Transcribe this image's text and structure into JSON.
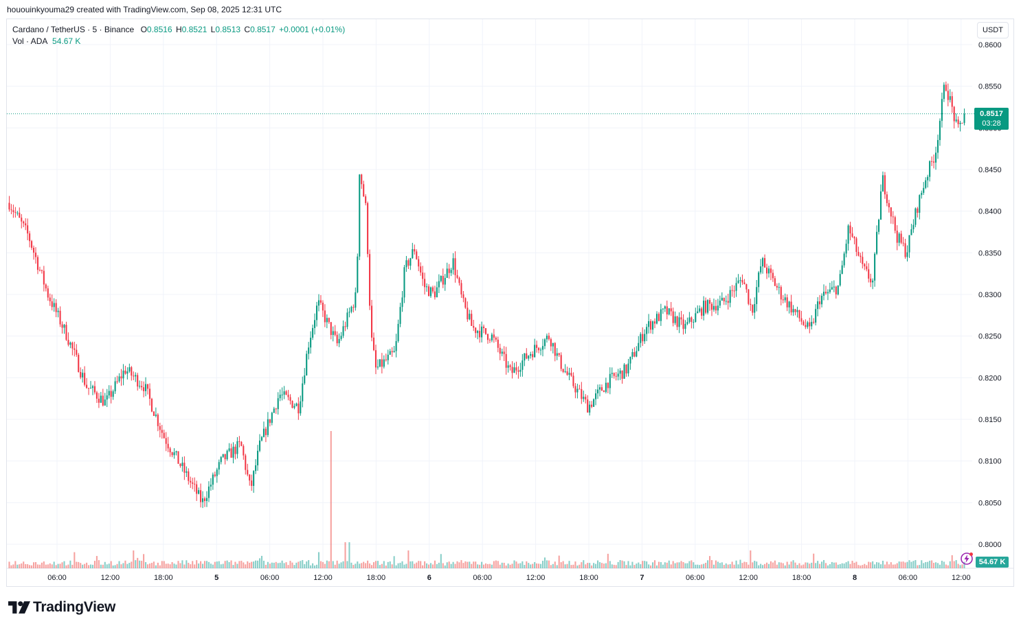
{
  "credit": "hououinkyouma29 created with TradingView.com, Sep 08, 2025 12:31 UTC",
  "legend": {
    "title": "Cardano / TetherUS · 5 · Binance",
    "open_label": "O",
    "open": "0.8516",
    "high_label": "H",
    "high": "0.8521",
    "low_label": "L",
    "low": "0.8513",
    "close_label": "C",
    "close": "0.8517",
    "change": "+0.0001 (+0.01%)",
    "vol_title": "Vol · ADA",
    "vol_value": "54.67 K"
  },
  "unit_button": "USDT",
  "last_price": {
    "price": "0.8517",
    "countdown": "03:28"
  },
  "volume_tag": "54.67 K",
  "logo_text": "TradingView",
  "icons": [
    "tradingview-logo-icon",
    "flash-icon"
  ],
  "colors": {
    "up": "#089981",
    "down": "#f23645",
    "vol_up": "#26a69a",
    "vol_down": "#ef5350",
    "grid": "#f0f3fa",
    "axis_text": "#131722"
  },
  "chart_data": {
    "type": "candlestick",
    "title": "Cardano / TetherUS · 5 · Binance",
    "ylim": [
      0.7995,
      0.8625
    ],
    "y_ticks": [
      "0.8600",
      "0.8550",
      "0.8500",
      "0.8450",
      "0.8400",
      "0.8350",
      "0.8300",
      "0.8250",
      "0.8200",
      "0.8150",
      "0.8100",
      "0.8050",
      "0.8000"
    ],
    "x_ticks": [
      "06:00",
      "12:00",
      "18:00",
      "5",
      "06:00",
      "12:00",
      "18:00",
      "6",
      "06:00",
      "12:00",
      "18:00",
      "7",
      "06:00",
      "12:00",
      "18:00",
      "8",
      "06:00",
      "12:00"
    ],
    "price_path": [
      {
        "t": 0,
        "p": 0.841
      },
      {
        "t": 2,
        "p": 0.837
      },
      {
        "t": 4,
        "p": 0.83
      },
      {
        "t": 6,
        "p": 0.825
      },
      {
        "t": 8,
        "p": 0.819
      },
      {
        "t": 10,
        "p": 0.817
      },
      {
        "t": 12,
        "p": 0.821
      },
      {
        "t": 14,
        "p": 0.819
      },
      {
        "t": 16,
        "p": 0.813
      },
      {
        "t": 18,
        "p": 0.809
      },
      {
        "t": 20,
        "p": 0.805
      },
      {
        "t": 22,
        "p": 0.81
      },
      {
        "t": 24,
        "p": 0.812
      },
      {
        "t": 25,
        "p": 0.8065
      },
      {
        "t": 26,
        "p": 0.812
      },
      {
        "t": 28,
        "p": 0.818
      },
      {
        "t": 30,
        "p": 0.8165
      },
      {
        "t": 31,
        "p": 0.824
      },
      {
        "t": 32,
        "p": 0.829
      },
      {
        "t": 34,
        "p": 0.824
      },
      {
        "t": 36,
        "p": 0.83
      },
      {
        "t": 36.3,
        "p": 0.845
      },
      {
        "t": 37,
        "p": 0.84
      },
      {
        "t": 37.5,
        "p": 0.825
      },
      {
        "t": 38,
        "p": 0.821
      },
      {
        "t": 40,
        "p": 0.823
      },
      {
        "t": 41,
        "p": 0.833
      },
      {
        "t": 42,
        "p": 0.8355
      },
      {
        "t": 43,
        "p": 0.831
      },
      {
        "t": 44,
        "p": 0.83
      },
      {
        "t": 46,
        "p": 0.834
      },
      {
        "t": 47,
        "p": 0.829
      },
      {
        "t": 48,
        "p": 0.826
      },
      {
        "t": 50,
        "p": 0.825
      },
      {
        "t": 52,
        "p": 0.8205
      },
      {
        "t": 54,
        "p": 0.823
      },
      {
        "t": 56,
        "p": 0.825
      },
      {
        "t": 57,
        "p": 0.822
      },
      {
        "t": 58,
        "p": 0.82
      },
      {
        "t": 60,
        "p": 0.8165
      },
      {
        "t": 62,
        "p": 0.8195
      },
      {
        "t": 64,
        "p": 0.821
      },
      {
        "t": 66,
        "p": 0.826
      },
      {
        "t": 68,
        "p": 0.828
      },
      {
        "t": 70,
        "p": 0.826
      },
      {
        "t": 72,
        "p": 0.8285
      },
      {
        "t": 74,
        "p": 0.829
      },
      {
        "t": 76,
        "p": 0.832
      },
      {
        "t": 77,
        "p": 0.828
      },
      {
        "t": 78,
        "p": 0.834
      },
      {
        "t": 80,
        "p": 0.83
      },
      {
        "t": 82,
        "p": 0.827
      },
      {
        "t": 83,
        "p": 0.8255
      },
      {
        "t": 84,
        "p": 0.8295
      },
      {
        "t": 86,
        "p": 0.831
      },
      {
        "t": 87,
        "p": 0.838
      },
      {
        "t": 88.5,
        "p": 0.833
      },
      {
        "t": 89.5,
        "p": 0.8315
      },
      {
        "t": 90.5,
        "p": 0.844
      },
      {
        "t": 92,
        "p": 0.837
      },
      {
        "t": 93,
        "p": 0.835
      },
      {
        "t": 94,
        "p": 0.84
      },
      {
        "t": 95,
        "p": 0.844
      },
      {
        "t": 96,
        "p": 0.847
      },
      {
        "t": 97,
        "p": 0.8555
      },
      {
        "t": 97.8,
        "p": 0.852
      },
      {
        "t": 98.3,
        "p": 0.8495
      },
      {
        "t": 99,
        "p": 0.8517
      }
    ],
    "volume_ticks": {
      "max_label": "54.67 K"
    }
  }
}
